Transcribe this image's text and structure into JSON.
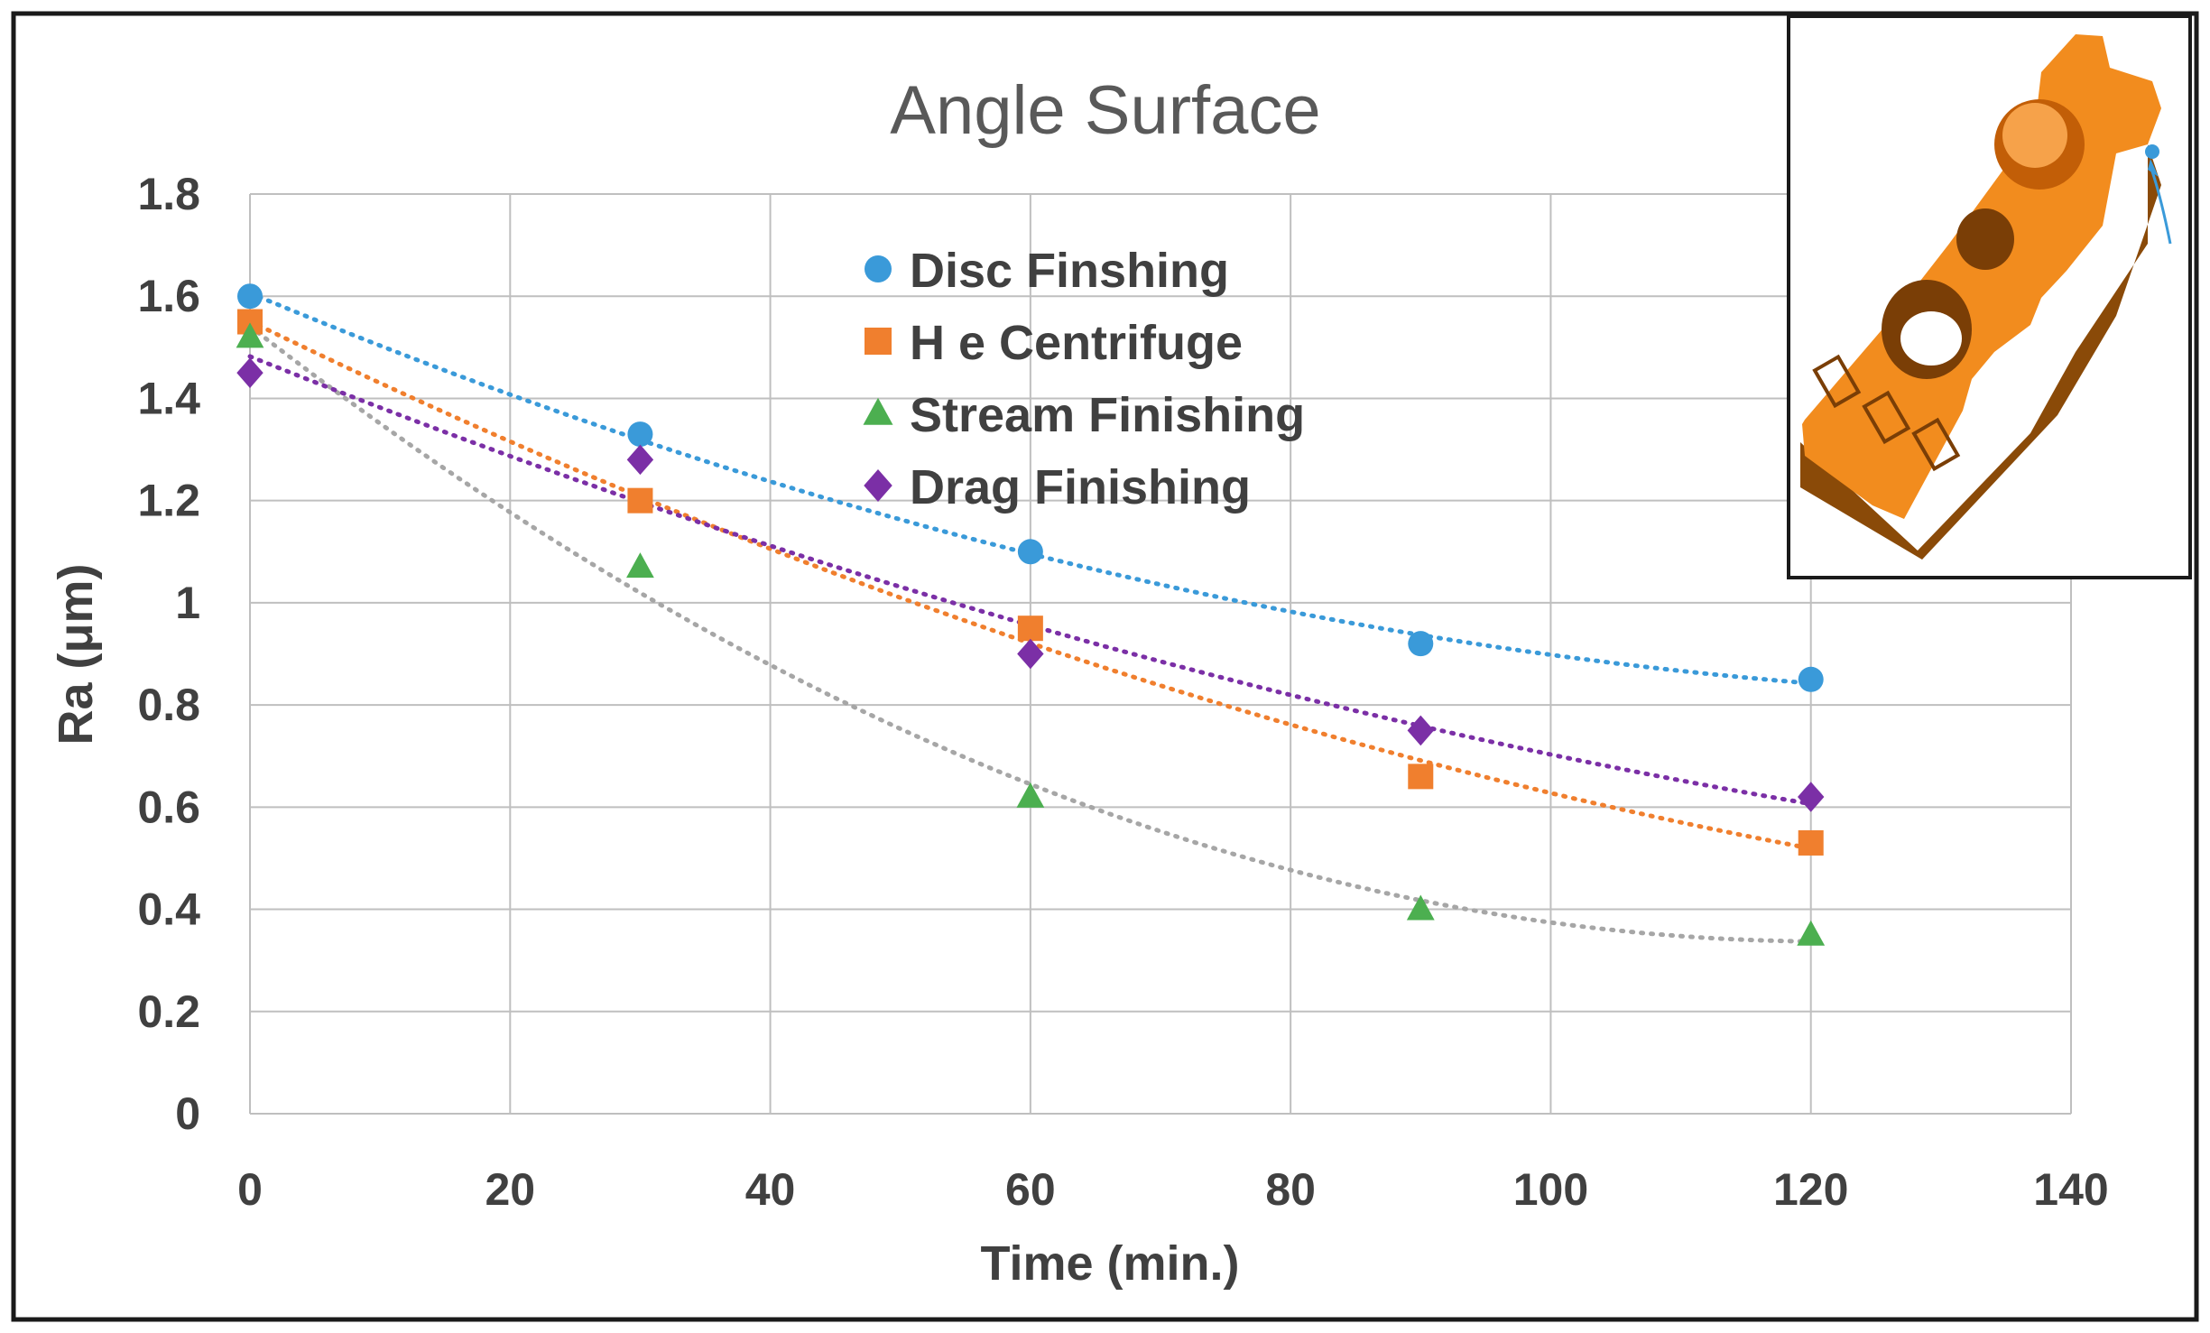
{
  "chart_data": {
    "type": "scatter",
    "title": "Angle Surface",
    "xlabel": "Time (min.)",
    "ylabel": "Ra (μm)",
    "xlim": [
      0,
      140
    ],
    "ylim": [
      0,
      1.8
    ],
    "xticks": [
      "0",
      "20",
      "40",
      "60",
      "80",
      "100",
      "120",
      "140"
    ],
    "yticks": [
      "0",
      "0.2",
      "0.4",
      "0.6",
      "0.8",
      "1",
      "1.2",
      "1.4",
      "1.6",
      "1.8"
    ],
    "xtick_values": [
      0,
      20,
      40,
      60,
      80,
      100,
      120,
      140
    ],
    "ytick_values": [
      0,
      0.2,
      0.4,
      0.6,
      0.8,
      1,
      1.2,
      1.4,
      1.6,
      1.8
    ],
    "grid": true,
    "legend_position": "top-center",
    "trendline": "polynomial (order 2), dotted",
    "x": [
      0,
      30,
      60,
      90,
      120
    ],
    "series": [
      {
        "name": "Disc Finshing",
        "marker": "circle",
        "color": "#3A9AD9",
        "values": [
          1.6,
          1.33,
          1.1,
          0.92,
          0.85
        ]
      },
      {
        "name": "H e Centrifuge",
        "marker": "square",
        "color": "#F07F2E",
        "values": [
          1.55,
          1.2,
          0.95,
          0.66,
          0.53
        ]
      },
      {
        "name": "Stream Finishing",
        "marker": "triangle",
        "color": "#4CAF50",
        "trend_color": "#A6A6A6",
        "values": [
          1.52,
          1.07,
          0.62,
          0.4,
          0.35
        ]
      },
      {
        "name": "Drag Finishing",
        "marker": "diamond",
        "color": "#7B2FA6",
        "values": [
          1.45,
          1.28,
          0.9,
          0.75,
          0.62
        ]
      }
    ]
  },
  "inset": {
    "description_icon": "orange-machined-part-icon",
    "body_color": "#F28C1E",
    "shadow_color": "#8A4A08",
    "pointer_color": "#3A9AD9"
  }
}
